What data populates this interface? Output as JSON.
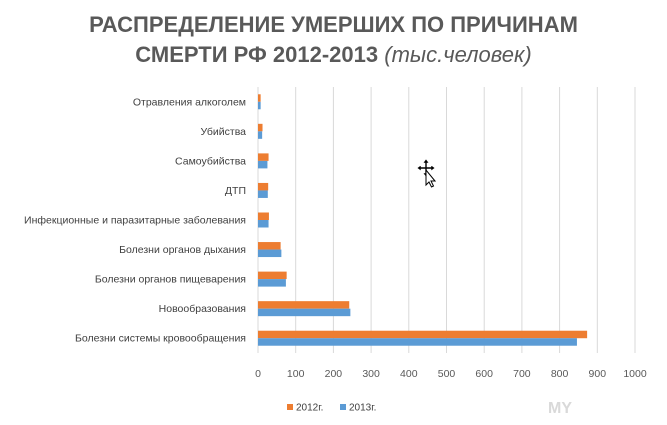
{
  "chart_data": {
    "type": "bar",
    "orientation": "horizontal",
    "title_line1": "РАСПРЕДЕЛЕНИЕ УМЕРШИХ ПО ПРИЧИНАМ",
    "title_line2": "СМЕРТИ РФ 2012-2013 ",
    "title_sub": "(тыс.человек)",
    "categories": [
      "Отравления алкоголем",
      "Убийства",
      "Самоубийства",
      "ДТП",
      "Инфекционные и паразитарные заболевания",
      "Болезни органов дыхания",
      "Болезни органов пищеварения",
      "Новообразования",
      "Болезни системы кровообращения"
    ],
    "series": [
      {
        "name": "2012г.",
        "color": "#ED7D31",
        "values": [
          7,
          12,
          28,
          27,
          29,
          60,
          76,
          242,
          873
        ]
      },
      {
        "name": "2013г.",
        "color": "#5B9BD5",
        "values": [
          7,
          11,
          25,
          26,
          28,
          62,
          74,
          245,
          846
        ]
      }
    ],
    "xlim": [
      0,
      1000
    ],
    "xticks": [
      "0",
      "100",
      "200",
      "300",
      "400",
      "500",
      "600",
      "700",
      "800",
      "900",
      "1000"
    ],
    "grid": true,
    "legend_position": "bottom-left"
  },
  "icons": {
    "cursor": "move-cursor-icon"
  }
}
